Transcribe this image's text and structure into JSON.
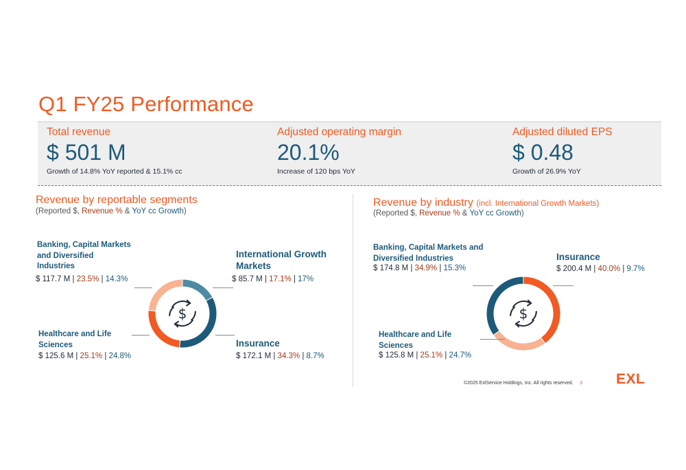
{
  "title": "Q1 FY25 Performance",
  "kpis": [
    {
      "label": "Total revenue",
      "value": "$ 501 M",
      "note": "Growth of 14.8% YoY reported & 15.1% cc"
    },
    {
      "label": "Adjusted operating margin",
      "value": "20.1%",
      "note": "Increase of 120 bps YoY"
    },
    {
      "label": "Adjusted diluted EPS",
      "value": "$ 0.48",
      "note": "Growth of 26.9% YoY"
    }
  ],
  "legend_text": {
    "reported": "(Reported $, ",
    "revenue_pct": "Revenue %",
    "amp": " & ",
    "yoy": "YoY cc Growth",
    "close": ")"
  },
  "colors": {
    "orange": "#f15a22",
    "teal": "#1d5a7a",
    "rust": "#a53a18",
    "light_teal": "#4f8aa5",
    "peach": "#f9b292"
  },
  "icon": "dollar-cycle-icon",
  "chart_data": [
    {
      "type": "pie",
      "title": "Revenue by reportable segments",
      "subtitle": "(Reported $, Revenue % & YoY cc Growth)",
      "series": [
        {
          "name": "International Growth Markets",
          "revenue": "$ 85.7 M",
          "pct_label": "17.1%",
          "yoy_label": "17%",
          "value": 17.1,
          "color": "#4f8aa5"
        },
        {
          "name": "Insurance",
          "revenue": "$ 172.1 M",
          "pct_label": "34.3%",
          "yoy_label": "8.7%",
          "value": 34.3,
          "color": "#1d5a7a"
        },
        {
          "name": "Healthcare and Life Sciences",
          "revenue": "$ 125.6 M",
          "pct_label": "25.1%",
          "yoy_label": "24.8%",
          "value": 25.1,
          "color": "#f15a22"
        },
        {
          "name": "Banking, Capital Markets and Diversified Industries",
          "revenue": "$ 117.7 M",
          "pct_label": "23.5%",
          "yoy_label": "14.3%",
          "value": 23.5,
          "color": "#f9b292"
        }
      ]
    },
    {
      "type": "pie",
      "title": "Revenue by industry",
      "title_note": "(incl. International Growth Markets)",
      "subtitle": "(Reported $, Revenue % & YoY cc Growth)",
      "series": [
        {
          "name": "Insurance",
          "revenue": "$ 200.4 M",
          "pct_label": "40.0%",
          "yoy_label": "9.7%",
          "value": 40.0,
          "color": "#f15a22"
        },
        {
          "name": "Healthcare and Life Sciences",
          "revenue": "$ 125.8 M",
          "pct_label": "25.1%",
          "yoy_label": "24.7%",
          "value": 25.1,
          "color": "#f9b292"
        },
        {
          "name": "Banking, Capital Markets and Diversified Industries",
          "revenue": "$ 174.8 M",
          "pct_label": "34.9%",
          "yoy_label": "15.3%",
          "value": 34.9,
          "color": "#1d5a7a"
        }
      ]
    }
  ],
  "footer": {
    "copyright": "©2025 ExlService Holdings, Inc. All rights reserved.",
    "page": "3",
    "logo": "EXL"
  }
}
